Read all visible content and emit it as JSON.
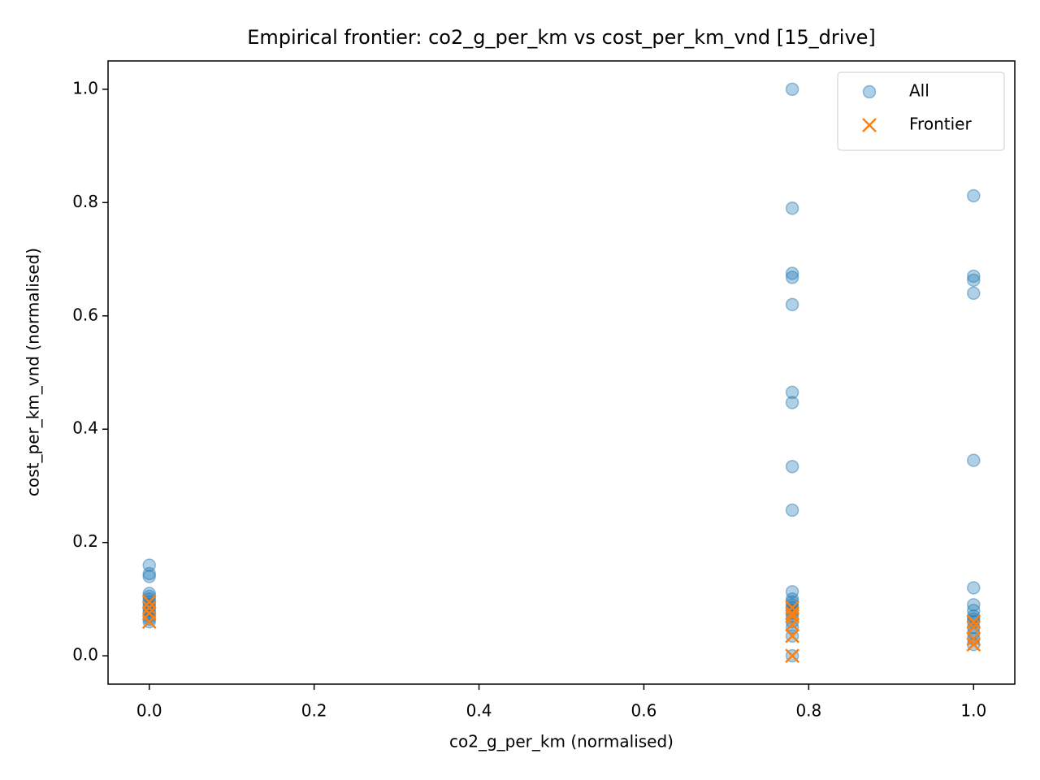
{
  "chart_data": {
    "type": "scatter",
    "title": "Empirical frontier: co2_g_per_km vs cost_per_km_vnd [15_drive]",
    "x_label": "co2_g_per_km (normalised)",
    "y_label": "cost_per_km_vnd (normalised)",
    "xlim": [
      -0.05,
      1.05
    ],
    "ylim": [
      -0.05,
      1.05
    ],
    "xticks": [
      {
        "value": 0,
        "label": "0.0"
      },
      0.2,
      0.4,
      0.6,
      0.8,
      {
        "value": 1,
        "label": "1.0"
      }
    ],
    "yticks": [
      {
        "value": 0,
        "label": "0.0"
      },
      0.2,
      0.4,
      0.6,
      0.8,
      {
        "value": 1,
        "label": "1.0"
      }
    ],
    "legend": "upper right",
    "series": [
      {
        "name": "All",
        "color": "#1f77b4",
        "marker": "circle",
        "x": [
          0,
          0,
          0,
          0,
          0,
          0,
          0,
          0,
          0,
          0,
          0,
          0,
          0,
          0,
          0.78,
          0.78,
          0.78,
          0.78,
          0.78,
          0.78,
          0.78,
          0.78,
          0.78,
          0.78,
          0.78,
          0.78,
          0.78,
          0.78,
          0.78,
          0.78,
          0.78,
          0.78,
          0.78,
          0.78,
          0.78,
          1,
          1,
          1,
          1,
          1,
          1,
          1,
          1,
          1,
          1,
          1,
          1,
          1,
          1,
          1
        ],
        "values": [
          0.16,
          0.145,
          0.14,
          0.11,
          0.105,
          0.1,
          0.095,
          0.09,
          0.085,
          0.08,
          0.075,
          0.07,
          0.065,
          0.06,
          1.0,
          0.79,
          0.675,
          0.668,
          0.62,
          0.465,
          0.447,
          0.334,
          0.257,
          0.113,
          0.1,
          0.095,
          0.09,
          0.085,
          0.08,
          0.075,
          0.07,
          0.06,
          0.05,
          0.035,
          0.0,
          0.812,
          0.67,
          0.663,
          0.64,
          0.345,
          0.12,
          0.09,
          0.08,
          0.07,
          0.065,
          0.06,
          0.05,
          0.04,
          0.03,
          0.02
        ]
      },
      {
        "name": "Frontier",
        "color": "#ff7f0e",
        "marker": "x",
        "x": [
          0,
          0,
          0,
          0,
          0.78,
          0.78,
          0.78,
          0.78,
          0.78,
          0.78,
          1,
          1,
          1,
          1
        ],
        "values": [
          0.095,
          0.085,
          0.075,
          0.06,
          0.085,
          0.075,
          0.07,
          0.055,
          0.035,
          0.0,
          0.06,
          0.05,
          0.03,
          0.02
        ]
      }
    ]
  }
}
